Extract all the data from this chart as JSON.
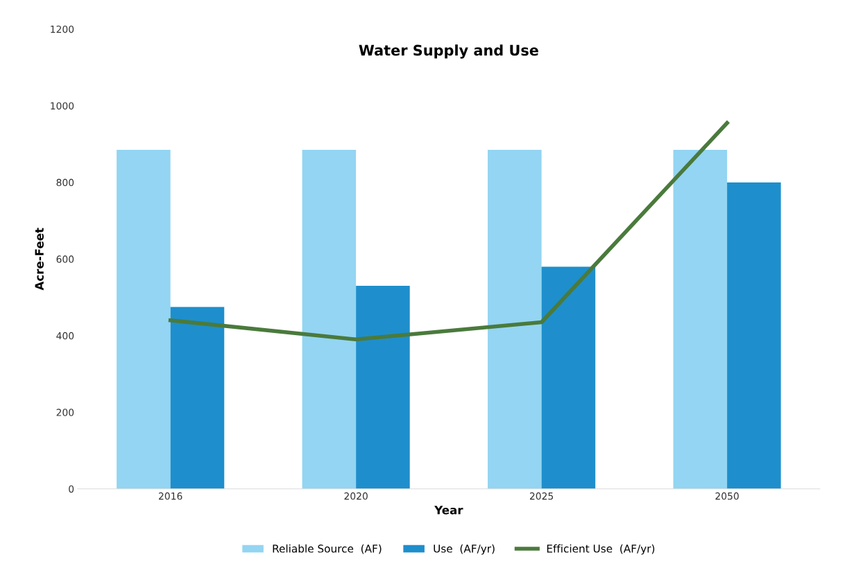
{
  "chart_data": {
    "type": "bar",
    "title": "Water Supply and Use",
    "xlabel": "Year",
    "ylabel": "Acre-Feet",
    "categories": [
      "2016",
      "2020",
      "2025",
      "2050"
    ],
    "series": [
      {
        "name": "Reliable Source  (AF)",
        "color": "#93d5f2",
        "values": [
          885,
          885,
          885,
          885
        ]
      },
      {
        "name": "Use  (AF/yr)",
        "color": "#1e8fcc",
        "values": [
          475,
          530,
          580,
          800
        ]
      },
      {
        "name": "Efficient Use  (AF/yr)",
        "color": "#4a7a3c",
        "type": "line",
        "values": [
          440,
          390,
          435,
          955
        ]
      }
    ],
    "ylim": [
      0,
      1200
    ],
    "yticks": [
      0,
      200,
      400,
      600,
      800,
      1000,
      1200
    ],
    "grid": false,
    "legend": "bottom",
    "marker": "none"
  }
}
